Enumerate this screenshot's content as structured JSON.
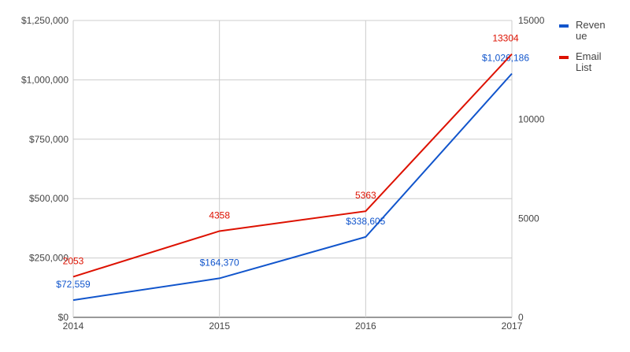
{
  "chart_data": {
    "type": "line",
    "title": "",
    "categories": [
      "2014",
      "2015",
      "2016",
      "2017"
    ],
    "series": [
      {
        "name": "Revenue",
        "axis": "left",
        "color": "#1155cc",
        "values": [
          72559,
          164370,
          338605,
          1026186
        ],
        "labels": [
          "$72,559",
          "$164,370",
          "$338,605",
          "$1,026,186"
        ]
      },
      {
        "name": "Email List",
        "axis": "right",
        "color": "#dd1100",
        "values": [
          2053,
          4358,
          5363,
          13304
        ],
        "labels": [
          "2053",
          "4358",
          "5363",
          "13304"
        ]
      }
    ],
    "left_axis": {
      "ylim": [
        0,
        1250000
      ],
      "ticks": [
        "$0",
        "$250,000",
        "$500,000",
        "$750,000",
        "$1,000,000",
        "$1,250,000"
      ]
    },
    "right_axis": {
      "ylim": [
        0,
        15000
      ],
      "ticks": [
        "0",
        "5000",
        "10000",
        "15000"
      ]
    },
    "grid": true,
    "legend": "right"
  }
}
